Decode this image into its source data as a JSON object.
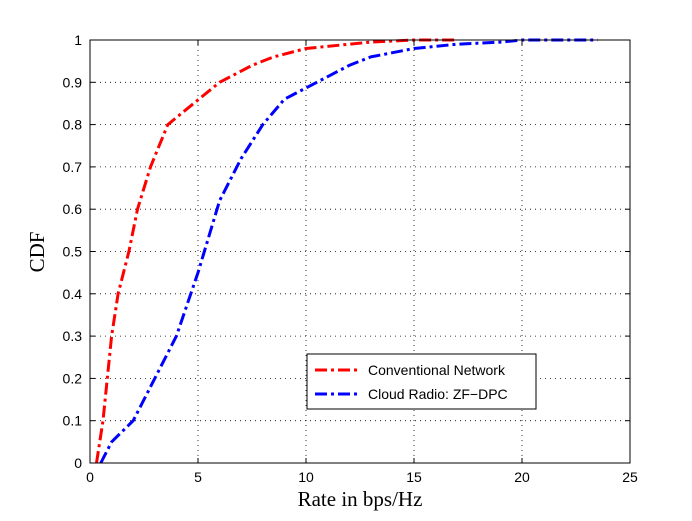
{
  "chart_data": {
    "type": "line",
    "xlabel": "Rate in bps/Hz",
    "ylabel": "CDF",
    "xlim": [
      0,
      25
    ],
    "ylim": [
      0,
      1
    ],
    "xticks": [
      0,
      5,
      10,
      15,
      20,
      25
    ],
    "yticks": [
      0,
      0.1,
      0.2,
      0.3,
      0.4,
      0.5,
      0.6,
      0.7,
      0.8,
      0.9,
      1
    ],
    "xtick_labels": [
      "0",
      "5",
      "10",
      "15",
      "20",
      "25"
    ],
    "ytick_labels": [
      "0",
      "0.1",
      "0.2",
      "0.3",
      "0.4",
      "0.5",
      "0.6",
      "0.7",
      "0.8",
      "0.9",
      "1"
    ],
    "grid": true,
    "legend_position": "lower-right",
    "series": [
      {
        "name": "Conventional Network",
        "color": "#ff0000",
        "dash": "dash-dot",
        "points": [
          [
            0.3,
            0
          ],
          [
            0.6,
            0.1
          ],
          [
            0.8,
            0.2
          ],
          [
            1.0,
            0.3
          ],
          [
            1.3,
            0.4
          ],
          [
            1.8,
            0.5
          ],
          [
            2.2,
            0.6
          ],
          [
            2.8,
            0.7
          ],
          [
            3.6,
            0.8
          ],
          [
            4.8,
            0.85
          ],
          [
            6.0,
            0.9
          ],
          [
            7.5,
            0.94
          ],
          [
            8.5,
            0.96
          ],
          [
            10,
            0.98
          ],
          [
            12,
            0.99
          ],
          [
            13,
            0.995
          ],
          [
            15,
            1.0
          ],
          [
            17,
            1.0
          ]
        ]
      },
      {
        "name": "Cloud Radio: ZF−DPC",
        "color": "#0000ff",
        "dash": "dash-dot",
        "points": [
          [
            0.5,
            0
          ],
          [
            1.0,
            0.05
          ],
          [
            2.0,
            0.1
          ],
          [
            3.0,
            0.2
          ],
          [
            4.0,
            0.3
          ],
          [
            5.0,
            0.45
          ],
          [
            6.0,
            0.62
          ],
          [
            7.0,
            0.72
          ],
          [
            8.0,
            0.8
          ],
          [
            9.0,
            0.86
          ],
          [
            10.5,
            0.9
          ],
          [
            12,
            0.94
          ],
          [
            13,
            0.96
          ],
          [
            15,
            0.98
          ],
          [
            17,
            0.99
          ],
          [
            19,
            0.995
          ],
          [
            20,
            1.0
          ],
          [
            23.5,
            1.0
          ]
        ]
      }
    ]
  }
}
